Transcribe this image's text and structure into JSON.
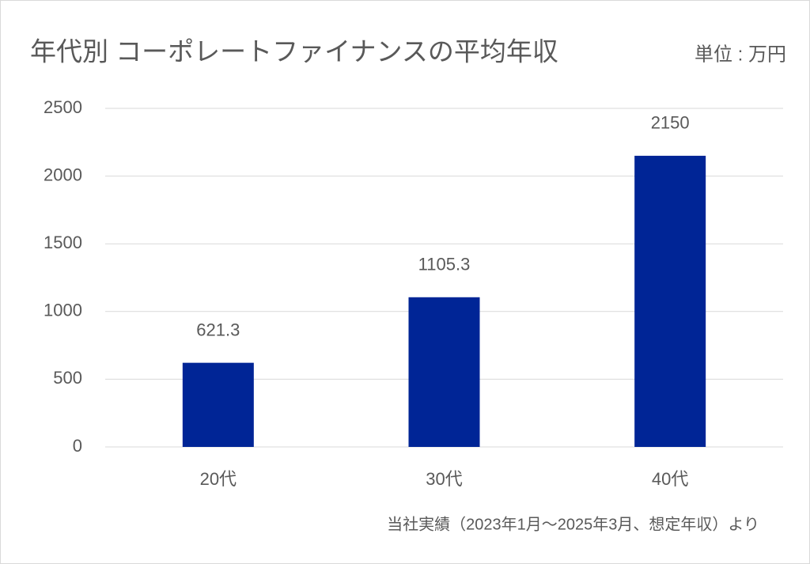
{
  "chart_data": {
    "type": "bar",
    "title": "年代別 コーポレートファイナンスの平均年収",
    "subtitle": "単位 : 万円",
    "note": "当社実績（2023年1月～2025年3月、想定年収）より",
    "categories": [
      "20代",
      "30代",
      "40代"
    ],
    "values": [
      621.3,
      1105.3,
      2150
    ],
    "color": "#002596",
    "ylim": [
      0,
      2500
    ],
    "yticks": [
      0,
      500,
      1000,
      1500,
      2000,
      2500
    ],
    "grid": true
  }
}
